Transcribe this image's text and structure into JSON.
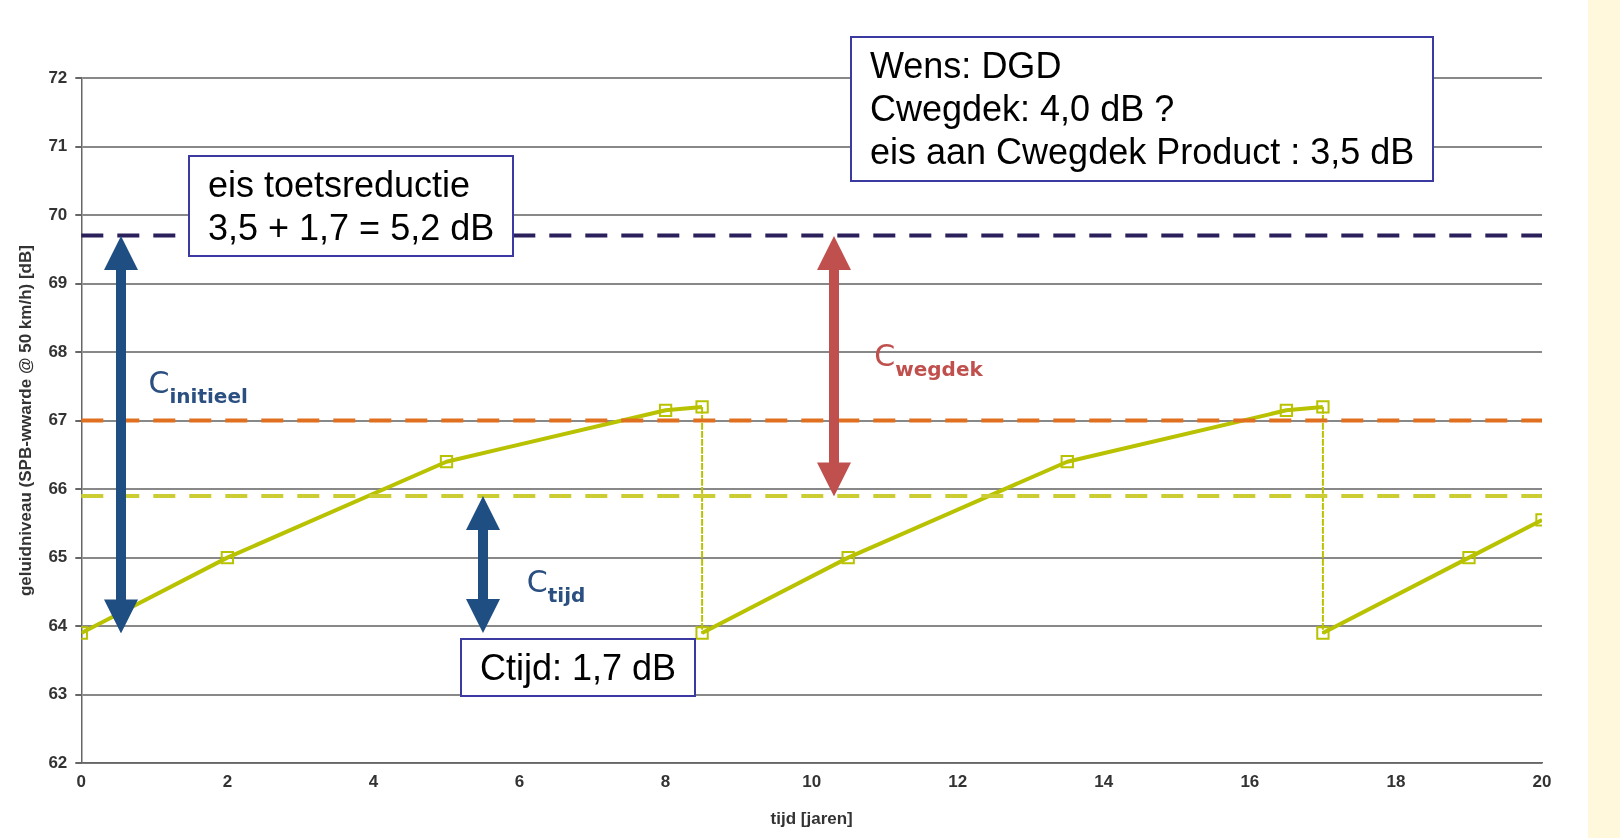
{
  "chart_data": {
    "type": "line",
    "xlabel": "tijd [jaren]",
    "ylabel": "geluidniveau (SPB-wwarde @ 50 km/h) [dB]",
    "xlim": [
      0,
      20
    ],
    "xticks": [
      0,
      2,
      4,
      6,
      8,
      10,
      12,
      14,
      16,
      18,
      20
    ],
    "ylim": [
      62,
      72
    ],
    "yticks": [
      62,
      63,
      64,
      65,
      66,
      67,
      68,
      69,
      70,
      71,
      72
    ],
    "grid": "y",
    "legend": false,
    "marker": "square",
    "line_style": "solid",
    "series": [
      {
        "color": "#b8c200",
        "x": [
          0,
          2,
          5,
          8,
          8.5,
          8.5,
          10.5,
          13.5,
          16.5,
          17,
          17,
          19,
          20
        ],
        "values": [
          63.9,
          65,
          66.4,
          67.15,
          67.2,
          63.9,
          65,
          66.4,
          67.15,
          67.2,
          63.9,
          65,
          65.55
        ]
      }
    ],
    "ref_lines": [
      {
        "axis": "y",
        "value": 69.7,
        "color": "#2b1f5c",
        "line_style": "dashed"
      },
      {
        "axis": "y",
        "value": 67,
        "color": "#e0701f",
        "line_style": "dashed"
      },
      {
        "axis": "y",
        "value": 65.9,
        "color": "#cccc33",
        "line_style": "dashed"
      }
    ],
    "annotations": [
      "Wens: DGD\nCwegdek: 4,0 dB ?\neis aan Cwegdek Product : 3,5 dB",
      "eis toetsreductie\n3,5 + 1,7 = 5,2 dB",
      "Ctijd: 1,7 dB",
      "C$_{initieel}$",
      "C$_{wegdek}$",
      "C$_{tijd}$"
    ]
  }
}
